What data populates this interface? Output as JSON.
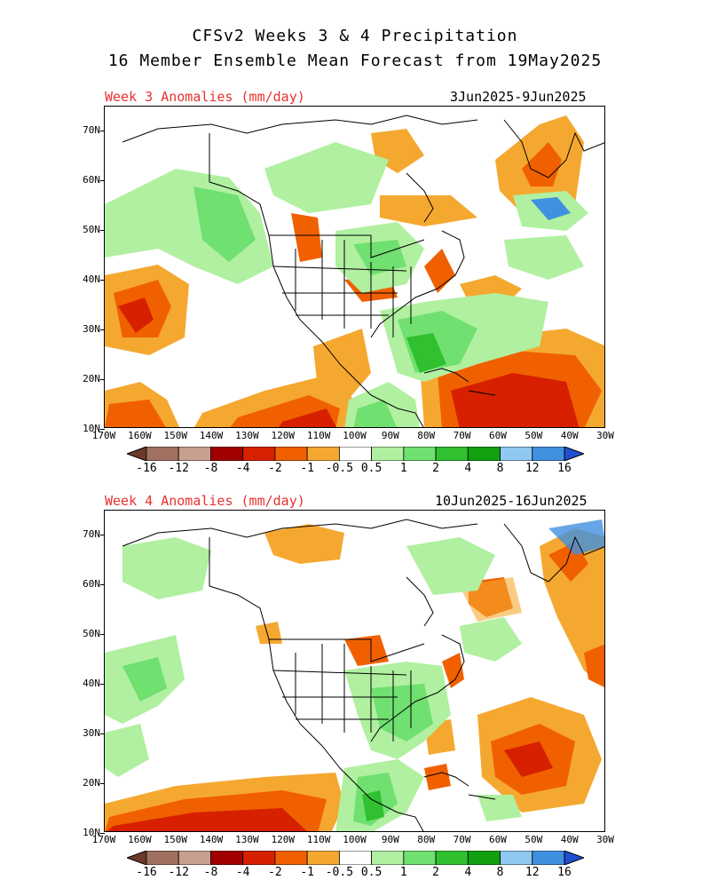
{
  "title": {
    "line1": "CFSv2 Weeks 3 & 4 Precipitation",
    "line2": "16 Member Ensemble Mean Forecast from 19May2025"
  },
  "panels": [
    {
      "label": "Week 3 Anomalies (mm/day)",
      "dates": "3Jun2025-9Jun2025"
    },
    {
      "label": "Week 4 Anomalies (mm/day)",
      "dates": "10Jun2025-16Jun2025"
    }
  ],
  "lat_labels": [
    "70N",
    "60N",
    "50N",
    "40N",
    "30N",
    "20N",
    "10N"
  ],
  "lon_labels": [
    "170W",
    "160W",
    "150W",
    "140W",
    "130W",
    "120W",
    "110W",
    "100W",
    "90W",
    "80W",
    "70W",
    "60W",
    "50W",
    "40W",
    "30W"
  ],
  "colorbar": {
    "labels": [
      "-16",
      "-12",
      "-8",
      "-4",
      "-2",
      "-1",
      "-0.5",
      "0.5",
      "1",
      "2",
      "4",
      "8",
      "12",
      "16"
    ],
    "colors": [
      "#6b3a2a",
      "#a07060",
      "#c8a090",
      "#a00000",
      "#d62000",
      "#f06000",
      "#f5a830",
      "#ffffff",
      "#b0f0a0",
      "#70e070",
      "#30c030",
      "#10a010",
      "#90c8f0",
      "#4090e0",
      "#2050d0"
    ]
  },
  "colors": {
    "title_red": "#e8322f",
    "dry_light": "#f5a830",
    "dry_mid": "#f06000",
    "dry_dark": "#d62000",
    "wet_light": "#b0f0a0",
    "wet_mid": "#70e070",
    "wet_dark": "#30c030"
  }
}
